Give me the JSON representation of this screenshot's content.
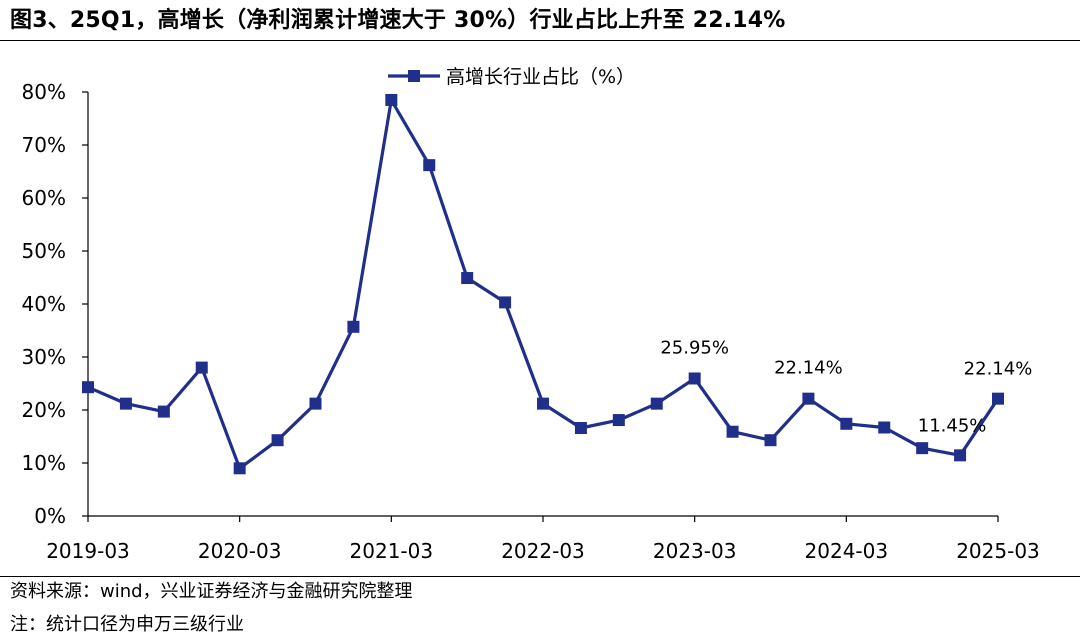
{
  "figure": {
    "title": "图3、25Q1，高增长（净利润累计增速大于 30%）行业占比上升至 22.14%",
    "source": "资料来源：wind，兴业证券经济与金融研究院整理",
    "note": "注：统计口径为申万三级行业"
  },
  "chart_data": {
    "type": "line",
    "title": "",
    "xlabel": "",
    "ylabel": "",
    "ylim": [
      0,
      80
    ],
    "yticks": [
      "0%",
      "10%",
      "20%",
      "30%",
      "40%",
      "50%",
      "60%",
      "70%",
      "80%"
    ],
    "xtick_labels": [
      "2019-03",
      "2020-03",
      "2021-03",
      "2022-03",
      "2023-03",
      "2024-03",
      "2025-03"
    ],
    "x": [
      "2019-03",
      "2019-06",
      "2019-09",
      "2019-12",
      "2020-03",
      "2020-06",
      "2020-09",
      "2020-12",
      "2021-03",
      "2021-06",
      "2021-09",
      "2021-12",
      "2022-03",
      "2022-06",
      "2022-09",
      "2022-12",
      "2023-03",
      "2023-06",
      "2023-09",
      "2023-12",
      "2024-03",
      "2024-06",
      "2024-09",
      "2024-12",
      "2025-03"
    ],
    "series": [
      {
        "name": "高增长行业占比（%）",
        "color": "#1f2f8a",
        "marker": "square",
        "values": [
          24.3,
          21.2,
          19.7,
          28.0,
          9.0,
          14.3,
          21.2,
          35.7,
          78.5,
          66.2,
          44.9,
          40.3,
          21.2,
          16.6,
          18.1,
          21.2,
          25.95,
          15.9,
          14.3,
          22.14,
          17.4,
          16.7,
          12.8,
          11.45,
          22.14
        ]
      }
    ],
    "legend": {
      "position": "top-center"
    },
    "grid": false,
    "annotations": [
      {
        "x": "2023-03",
        "text": "25.95%"
      },
      {
        "x": "2023-12",
        "text": "22.14%"
      },
      {
        "x": "2024-12",
        "text": "11.45%"
      },
      {
        "x": "2025-03",
        "text": "22.14%"
      }
    ]
  }
}
